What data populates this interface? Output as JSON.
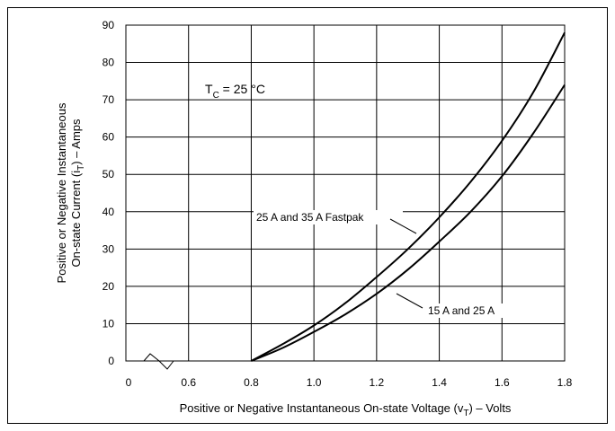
{
  "chart_data": {
    "type": "line",
    "xlabel_parts": [
      "Positive or Negative Instantaneous On-state Voltage (v",
      "T",
      ") – Volts"
    ],
    "ylabel_line1": "Positive or Negative Instantaneous",
    "ylabel_line2_parts": [
      "On-state Current (i",
      "T",
      ") – Amps"
    ],
    "xlim": [
      0.4,
      1.8
    ],
    "ylim": [
      0,
      90
    ],
    "x_ticks": [
      0.6,
      0.8,
      1.0,
      1.2,
      1.4,
      1.6,
      1.8
    ],
    "x_tick_labels": [
      "0.6",
      "0.8",
      "1.0",
      "1.2",
      "1.4",
      "1.6",
      "1.8"
    ],
    "x_origin_label": "0",
    "y_ticks": [
      0,
      10,
      20,
      30,
      40,
      50,
      60,
      70,
      80,
      90
    ],
    "y_tick_labels": [
      "0",
      "10",
      "20",
      "30",
      "40",
      "50",
      "60",
      "70",
      "80",
      "90"
    ],
    "grid": true,
    "axis_break": true,
    "annotation": {
      "main": "T",
      "sub": "C",
      "rest": " = 25 °C"
    },
    "series": [
      {
        "name": "25 A and 35 A Fastpak",
        "x": [
          0.8,
          0.9,
          1.0,
          1.1,
          1.2,
          1.3,
          1.4,
          1.5,
          1.6,
          1.7,
          1.8
        ],
        "y": [
          0,
          4.5,
          9.5,
          15.5,
          22.5,
          30,
          38.5,
          48,
          59,
          72,
          88
        ]
      },
      {
        "name": "15 A and 25 A",
        "x": [
          0.8,
          0.9,
          1.0,
          1.1,
          1.2,
          1.3,
          1.4,
          1.5,
          1.6,
          1.7,
          1.8
        ],
        "y": [
          0,
          3.5,
          7.8,
          12.5,
          18,
          24.5,
          32,
          40,
          49.5,
          61,
          74
        ]
      }
    ]
  }
}
